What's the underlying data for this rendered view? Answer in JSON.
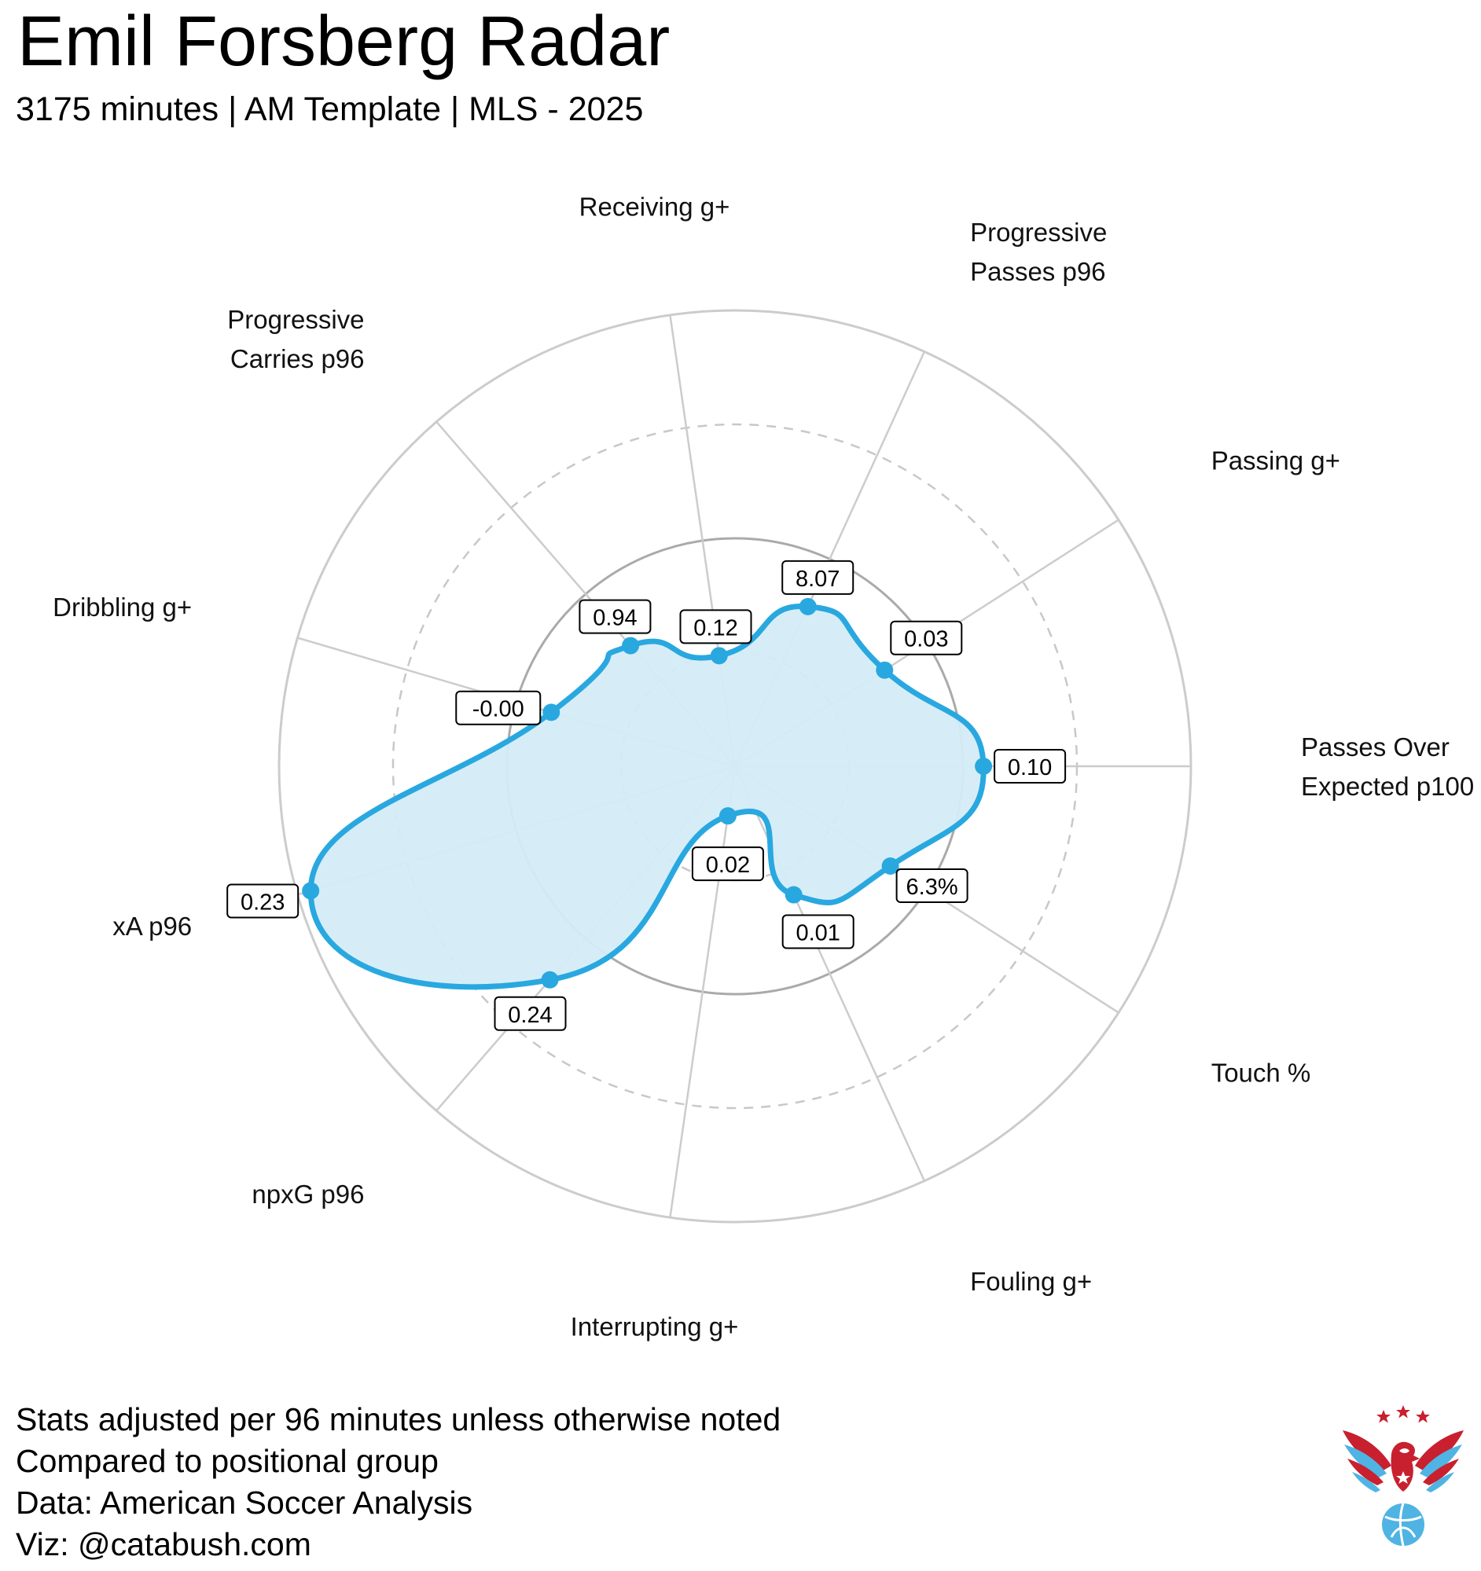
{
  "header": {
    "title": "Emil Forsberg Radar",
    "subtitle": "3175 minutes | AM Template | MLS - 2025"
  },
  "colors": {
    "accent": "#29a8e0",
    "fill": "#d4ecf8",
    "grid": "#cccccc",
    "grid_mid": "#aaaaaa",
    "dashed": "#c8c8c8"
  },
  "chart_data": {
    "type": "radar",
    "scale": "percentile",
    "range": [
      0,
      1
    ],
    "axes": [
      {
        "label": [
          "Passes Over",
          "Expected p100"
        ],
        "value_label": "0.10",
        "percentile": 0.545
      },
      {
        "label": [
          "Touch %"
        ],
        "value_label": "6.3%",
        "percentile": 0.405
      },
      {
        "label": [
          "Fouling g+"
        ],
        "value_label": "0.01",
        "percentile": 0.31
      },
      {
        "label": [
          "Interrupting g+"
        ],
        "value_label": "0.02",
        "percentile": 0.11
      },
      {
        "label": [
          "npxG p96"
        ],
        "value_label": "0.24",
        "percentile": 0.62
      },
      {
        "label": [
          "xA p96"
        ],
        "value_label": "0.23",
        "percentile": 0.97
      },
      {
        "label": [
          "Dribbling g+"
        ],
        "value_label": "-0.00",
        "percentile": 0.42
      },
      {
        "label": [
          "Progressive",
          "Carries p96"
        ],
        "value_label": "0.94",
        "percentile": 0.35
      },
      {
        "label": [
          "Receiving g+"
        ],
        "value_label": "0.12",
        "percentile": 0.245
      },
      {
        "label": [
          "Progressive",
          "Passes p96"
        ],
        "value_label": "8.07",
        "percentile": 0.385
      },
      {
        "label": [
          "Passing g+"
        ],
        "value_label": "0.03",
        "percentile": 0.39
      }
    ],
    "rings": [
      0.25,
      0.5,
      0.75,
      1.0
    ]
  },
  "footer": {
    "lines": [
      "Stats adjusted per 96 minutes unless otherwise noted",
      "Compared to positional group",
      "Data: American Soccer Analysis",
      "Viz: @catabush.com"
    ]
  },
  "logo": {
    "icon": "eagle-soccer-ball-logo"
  }
}
